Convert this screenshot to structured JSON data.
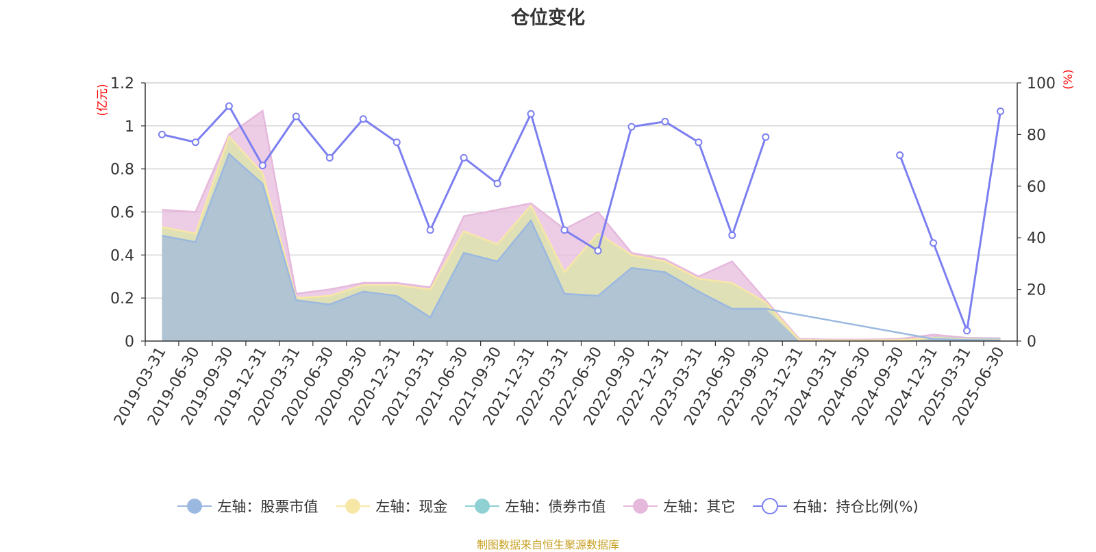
{
  "title": "仓位变化",
  "source_note": "制图数据来自恒生聚源数据库",
  "colors": {
    "stock": "#9bb8e0",
    "cash": "#f7e7a6",
    "bond": "#8fd1d3",
    "other": "#e5b8dc",
    "ratio": "#7b7ff0",
    "axis_unit": "#ff0000"
  },
  "chart_data": {
    "type": "area",
    "title": "仓位变化",
    "left_axis_label": "(亿元)",
    "right_axis_label": "(%)",
    "ylim_left": [
      0,
      1.2
    ],
    "left_ticks": [
      "0",
      "0.2",
      "0.4",
      "0.6",
      "0.8",
      "1",
      "1.2"
    ],
    "ylim_right": [
      0,
      100
    ],
    "right_ticks": [
      "0",
      "20",
      "40",
      "60",
      "80",
      "100"
    ],
    "grid": true,
    "legend_position": "bottom",
    "categories": [
      "2019-03-31",
      "2019-06-30",
      "2019-09-30",
      "2019-12-31",
      "2020-03-31",
      "2020-06-30",
      "2020-09-30",
      "2020-12-31",
      "2021-03-31",
      "2021-06-30",
      "2021-09-30",
      "2021-12-31",
      "2022-03-31",
      "2022-06-30",
      "2022-09-30",
      "2022-12-31",
      "2023-03-31",
      "2023-06-30",
      "2023-09-30",
      "2023-12-31",
      "2024-03-31",
      "2024-06-30",
      "2024-09-30",
      "2024-12-31",
      "2025-03-31",
      "2025-06-30"
    ],
    "series": [
      {
        "name": "左轴：股票市值",
        "axis": "left",
        "kind": "stacked-area",
        "values": [
          0.49,
          0.46,
          0.87,
          0.73,
          0.19,
          0.17,
          0.23,
          0.21,
          0.11,
          0.41,
          0.37,
          0.56,
          0.22,
          0.21,
          0.34,
          0.32,
          0.23,
          0.15,
          0.15,
          null,
          null,
          null,
          null,
          0.01,
          0.005,
          0.003
        ]
      },
      {
        "name": "左轴：现金",
        "axis": "left",
        "kind": "stacked-area",
        "values": [
          0.04,
          0.04,
          0.08,
          0.05,
          0.01,
          0.04,
          0.03,
          0.05,
          0.13,
          0.1,
          0.08,
          0.07,
          0.1,
          0.29,
          0.06,
          0.05,
          0.06,
          0.12,
          0.03,
          0.005,
          0.003,
          0.003,
          0.005,
          0.005,
          0.003,
          0.003
        ]
      },
      {
        "name": "左轴：债券市值",
        "axis": "left",
        "kind": "stacked-area",
        "values": [
          null,
          null,
          null,
          null,
          null,
          null,
          null,
          null,
          null,
          null,
          null,
          null,
          null,
          null,
          null,
          null,
          null,
          null,
          null,
          null,
          null,
          null,
          null,
          0.002,
          0.002,
          0.002
        ]
      },
      {
        "name": "左轴：其它",
        "axis": "left",
        "kind": "stacked-area",
        "values": [
          0.08,
          0.1,
          0.01,
          0.29,
          0.02,
          0.03,
          0.01,
          0.01,
          0.01,
          0.07,
          0.16,
          0.01,
          0.2,
          0.1,
          0.01,
          0.01,
          0.01,
          0.1,
          0.01,
          0.005,
          0.004,
          0.004,
          0.005,
          0.013,
          0.005,
          0.005
        ]
      },
      {
        "name": "右轴：持仓比例(%)",
        "axis": "right",
        "kind": "line",
        "values": [
          80,
          77,
          91,
          68,
          87,
          71,
          86,
          77,
          43,
          71,
          61,
          88,
          43,
          35,
          83,
          85,
          77,
          41,
          79,
          null,
          null,
          null,
          72,
          38,
          4,
          89
        ]
      }
    ]
  }
}
